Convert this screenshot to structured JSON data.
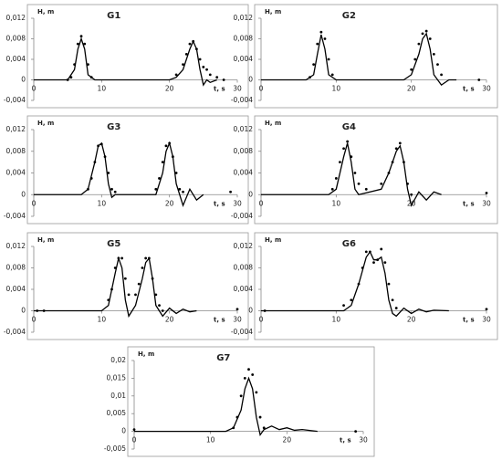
{
  "chart_data": [
    {
      "type": "line",
      "title": "G1",
      "xlabel": "t, s",
      "ylabel": "H, m",
      "xlim": [
        0,
        30
      ],
      "xticks": [
        0,
        10,
        20,
        30
      ],
      "ylim": [
        -0.004,
        0.012
      ],
      "yticks": [
        {
          "value": -0.004,
          "label": "-0,004"
        },
        0,
        {
          "value": 0.004,
          "label": "0,004"
        },
        {
          "value": 0.008,
          "label": "0,008"
        },
        {
          "value": 0.012,
          "label": "0,012"
        }
      ],
      "series": [
        {
          "style": "line",
          "color": "#000000",
          "x": [
            0,
            5,
            6,
            6.5,
            7,
            7.5,
            8,
            9,
            20,
            21,
            22,
            23,
            23.5,
            24,
            24.5,
            25,
            25.5,
            26,
            27
          ],
          "values": [
            0,
            0,
            0.002,
            0.006,
            0.008,
            0.006,
            0.001,
            0,
            0,
            0.0005,
            0.002,
            0.006,
            0.0075,
            0.006,
            0.002,
            -0.001,
            0,
            -0.0005,
            0
          ]
        },
        {
          "style": "dots",
          "color": "#000000",
          "x": [
            5,
            5.5,
            6,
            6.5,
            7,
            7.5,
            8,
            8.5,
            21,
            22,
            22.5,
            23,
            23.5,
            24,
            24.5,
            25,
            25.5,
            26,
            27,
            28
          ],
          "values": [
            0,
            0.0005,
            0.003,
            0.007,
            0.0085,
            0.007,
            0.003,
            0.0005,
            0.001,
            0.003,
            0.005,
            0.007,
            0.0075,
            0.006,
            0.004,
            0.0025,
            0.002,
            0.001,
            0.0005,
            0
          ]
        }
      ]
    },
    {
      "type": "line",
      "title": "G2",
      "xlabel": "t, s",
      "ylabel": "H, m",
      "xlim": [
        0,
        30
      ],
      "xticks": [
        0,
        10,
        20,
        30
      ],
      "ylim": [
        -0.004,
        0.012
      ],
      "yticks": [
        {
          "value": -0.004,
          "label": "-0,004"
        },
        0,
        {
          "value": 0.004,
          "label": "0,004"
        },
        {
          "value": 0.008,
          "label": "0,008"
        },
        {
          "value": 0.012,
          "label": "0,012"
        }
      ],
      "series": [
        {
          "style": "line",
          "color": "#000000",
          "x": [
            0,
            6,
            7,
            7.5,
            8,
            8.5,
            9,
            10,
            19,
            20,
            21,
            21.5,
            22,
            22.5,
            23,
            24,
            25,
            26
          ],
          "values": [
            0,
            0,
            0.001,
            0.005,
            0.0088,
            0.006,
            0.001,
            0,
            0,
            0.001,
            0.005,
            0.008,
            0.009,
            0.006,
            0.001,
            -0.001,
            0,
            0
          ]
        },
        {
          "style": "dots",
          "color": "#000000",
          "x": [
            6.5,
            7,
            7.5,
            8,
            8.5,
            9,
            9.5,
            20,
            20.5,
            21,
            21.5,
            22,
            22.5,
            23,
            23.5,
            24,
            29
          ],
          "values": [
            0.0005,
            0.003,
            0.007,
            0.0093,
            0.008,
            0.004,
            0.001,
            0.002,
            0.004,
            0.007,
            0.009,
            0.0095,
            0.008,
            0.005,
            0.003,
            0.001,
            0
          ]
        }
      ]
    },
    {
      "type": "line",
      "title": "G3",
      "xlabel": "t, s",
      "ylabel": "H, m",
      "xlim": [
        0,
        30
      ],
      "xticks": [
        0,
        10,
        20,
        30
      ],
      "ylim": [
        -0.004,
        0.012
      ],
      "yticks": [
        {
          "value": -0.004,
          "label": "-0,004"
        },
        0,
        {
          "value": 0.004,
          "label": "0,004"
        },
        {
          "value": 0.008,
          "label": "0,008"
        },
        {
          "value": 0.012,
          "label": "0,012"
        }
      ],
      "series": [
        {
          "style": "line",
          "color": "#000000",
          "x": [
            0,
            7,
            8,
            9,
            9.5,
            10,
            10.5,
            11,
            11.5,
            12,
            18,
            19,
            19.5,
            20,
            20.5,
            21,
            22,
            23,
            24,
            25
          ],
          "values": [
            0,
            0,
            0.001,
            0.006,
            0.009,
            0.0095,
            0.007,
            0.002,
            -0.0005,
            0,
            0,
            0.004,
            0.008,
            0.0095,
            0.007,
            0.002,
            -0.002,
            0.001,
            -0.001,
            0
          ]
        },
        {
          "style": "dots",
          "color": "#000000",
          "x": [
            8,
            8.5,
            9,
            9.5,
            10,
            10.5,
            11,
            11.5,
            12,
            18,
            18.5,
            19,
            19.5,
            20,
            20.5,
            21,
            21.5,
            22,
            29
          ],
          "values": [
            0.001,
            0.003,
            0.006,
            0.009,
            0.0093,
            0.007,
            0.004,
            0.001,
            0.0005,
            0.001,
            0.003,
            0.006,
            0.009,
            0.0095,
            0.007,
            0.004,
            0.001,
            0.0005,
            0.0005
          ]
        }
      ]
    },
    {
      "type": "line",
      "title": "G4",
      "xlabel": "t, s",
      "ylabel": "H, m",
      "xlim": [
        0,
        30
      ],
      "xticks": [
        0,
        10,
        20,
        30
      ],
      "ylim": [
        -0.004,
        0.012
      ],
      "yticks": [
        {
          "value": -0.004,
          "label": "-0,004"
        },
        0,
        {
          "value": 0.004,
          "label": "0,004"
        },
        {
          "value": 0.008,
          "label": "0,008"
        },
        {
          "value": 0.012,
          "label": "0,012"
        }
      ],
      "series": [
        {
          "style": "line",
          "color": "#000000",
          "x": [
            0,
            9,
            10,
            11,
            11.5,
            12,
            12.5,
            13,
            16,
            17,
            18,
            18.5,
            19,
            19.5,
            20,
            21,
            22,
            23,
            24
          ],
          "values": [
            0,
            0,
            0.001,
            0.007,
            0.0095,
            0.006,
            0.001,
            0,
            0.001,
            0.004,
            0.008,
            0.009,
            0.006,
            0.001,
            -0.002,
            0.0005,
            -0.001,
            0.0005,
            0
          ]
        },
        {
          "style": "dots",
          "color": "#000000",
          "x": [
            9.5,
            10,
            10.5,
            11,
            11.5,
            12,
            12.5,
            13,
            14,
            16,
            17,
            17.5,
            18,
            18.5,
            19,
            19.5,
            20,
            30
          ],
          "values": [
            0.001,
            0.003,
            0.006,
            0.0085,
            0.0098,
            0.007,
            0.004,
            0.002,
            0.001,
            0.002,
            0.004,
            0.006,
            0.0085,
            0.0095,
            0.006,
            0.002,
            0,
            0.0003
          ]
        }
      ]
    },
    {
      "type": "line",
      "title": "G5",
      "xlabel": "t, s",
      "ylabel": "H, m",
      "xlim": [
        0,
        30
      ],
      "xticks": [
        0,
        10,
        20,
        30
      ],
      "ylim": [
        -0.004,
        0.012
      ],
      "yticks": [
        {
          "value": -0.004,
          "label": "-0,004"
        },
        0,
        {
          "value": 0.004,
          "label": "0,004"
        },
        {
          "value": 0.008,
          "label": "0,008"
        },
        {
          "value": 0.012,
          "label": "0,012"
        }
      ],
      "series": [
        {
          "style": "line",
          "color": "#000000",
          "x": [
            0,
            10,
            11,
            12,
            12.5,
            13,
            13.5,
            14,
            15,
            16,
            16.5,
            17,
            17.5,
            18,
            19,
            20,
            21,
            22,
            23,
            24
          ],
          "values": [
            0,
            0,
            0.001,
            0.007,
            0.0098,
            0.008,
            0.002,
            -0.001,
            0.001,
            0.006,
            0.009,
            0.0098,
            0.006,
            0.001,
            -0.001,
            0.0005,
            -0.0005,
            0.0003,
            -0.0002,
            0
          ]
        },
        {
          "style": "dots",
          "color": "#000000",
          "x": [
            0.5,
            1.5,
            11,
            11.5,
            12,
            12.5,
            13,
            13.5,
            14,
            15,
            15.5,
            16,
            16.5,
            17,
            17.5,
            18,
            18.5,
            19,
            30
          ],
          "values": [
            0,
            0,
            0.002,
            0.004,
            0.008,
            0.0098,
            0.0098,
            0.006,
            0.003,
            0.003,
            0.005,
            0.008,
            0.0098,
            0.0098,
            0.006,
            0.003,
            0.001,
            0,
            0.0003
          ]
        }
      ]
    },
    {
      "type": "line",
      "title": "G6",
      "xlabel": "t, s",
      "ylabel": "H, m",
      "xlim": [
        0,
        30
      ],
      "xticks": [
        0,
        10,
        20,
        30
      ],
      "ylim": [
        -0.004,
        0.012
      ],
      "yticks": [
        {
          "value": -0.004,
          "label": "-0,004"
        },
        0,
        {
          "value": 0.004,
          "label": "0,004"
        },
        {
          "value": 0.008,
          "label": "0,008"
        },
        {
          "value": 0.012,
          "label": "0,012"
        }
      ],
      "series": [
        {
          "style": "line",
          "color": "#000000",
          "x": [
            0,
            11,
            12,
            13,
            14,
            14.5,
            15,
            15.5,
            16,
            16.5,
            17,
            17.5,
            18,
            19,
            20,
            21,
            22,
            23,
            25
          ],
          "values": [
            0,
            0,
            0.001,
            0.005,
            0.01,
            0.011,
            0.0095,
            0.0095,
            0.01,
            0.007,
            0.002,
            -0.0005,
            -0.001,
            0.0005,
            -0.0005,
            0.0003,
            -0.0002,
            0.0001,
            0
          ]
        },
        {
          "style": "dots",
          "color": "#000000",
          "x": [
            0.5,
            11,
            12,
            13,
            13.5,
            14,
            14.5,
            15,
            15.5,
            16,
            16.5,
            17,
            17.5,
            18,
            30
          ],
          "values": [
            0,
            0.001,
            0.002,
            0.005,
            0.008,
            0.011,
            0.011,
            0.009,
            0.0095,
            0.0115,
            0.009,
            0.005,
            0.002,
            0.0005,
            0.0003
          ]
        }
      ]
    },
    {
      "type": "line",
      "title": "G7",
      "xlabel": "t, s",
      "ylabel": "H, m",
      "xlim": [
        0,
        30
      ],
      "xticks": [
        0,
        10,
        20,
        30
      ],
      "ylim": [
        -0.005,
        0.02
      ],
      "yticks": [
        {
          "value": -0.005,
          "label": "-0,005"
        },
        0,
        {
          "value": 0.005,
          "label": "0,005"
        },
        {
          "value": 0.01,
          "label": "0,01"
        },
        {
          "value": 0.015,
          "label": "0,015"
        },
        {
          "value": 0.02,
          "label": "0,02"
        }
      ],
      "series": [
        {
          "style": "line",
          "color": "#000000",
          "x": [
            0,
            12,
            13,
            14,
            14.5,
            15,
            15.5,
            16,
            16.5,
            17,
            18,
            19,
            20,
            21,
            22,
            24
          ],
          "values": [
            0,
            0,
            0.001,
            0.006,
            0.012,
            0.015,
            0.012,
            0.004,
            -0.001,
            0.0005,
            0.0015,
            0.0005,
            0.001,
            0.0003,
            0.0005,
            0
          ]
        },
        {
          "style": "dots",
          "color": "#000000",
          "x": [
            0,
            13,
            13.5,
            14,
            14.5,
            15,
            15.5,
            16,
            16.5,
            17,
            29
          ],
          "values": [
            0.0005,
            0.001,
            0.004,
            0.01,
            0.015,
            0.0175,
            0.016,
            0.011,
            0.004,
            0.001,
            0
          ]
        }
      ]
    }
  ]
}
